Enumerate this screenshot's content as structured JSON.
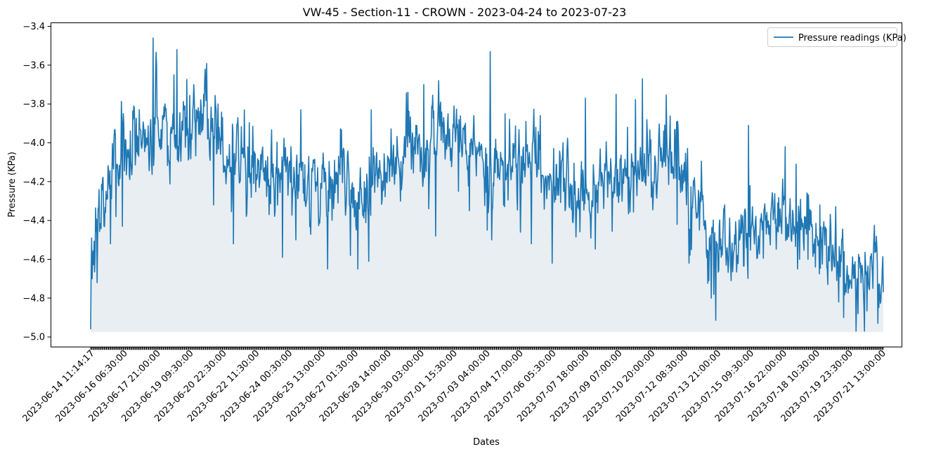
{
  "chart_data": {
    "type": "line",
    "title": "VW-45 - Section-11 - CROWN - 2023-04-24 to 2023-07-23",
    "xlabel": "Dates",
    "ylabel": "Pressure (KPa)",
    "ylim": [
      -5.05,
      -3.38
    ],
    "yticks": [
      -5.0,
      -4.8,
      -4.6,
      -4.4,
      -4.2,
      -4.0,
      -3.8,
      -3.6,
      -3.4
    ],
    "ytick_labels": [
      "−5.0",
      "−4.8",
      "−4.6",
      "−4.4",
      "−4.2",
      "−4.0",
      "−3.8",
      "−3.6",
      "−3.4"
    ],
    "xtick_labels": [
      "2023-06-14 11:14:17",
      "2023-06-16 06:30:00",
      "2023-06-17 21:00:00",
      "2023-06-19 09:30:00",
      "2023-06-20 22:30:00",
      "2023-06-22 11:30:00",
      "2023-06-24 00:30:00",
      "2023-06-25 13:00:00",
      "2023-06-27 01:30:00",
      "2023-06-28 14:00:00",
      "2023-06-30 03:00:00",
      "2023-07-01 15:30:00",
      "2023-07-03 04:00:00",
      "2023-07-04 17:00:00",
      "2023-07-06 05:30:00",
      "2023-07-07 18:00:00",
      "2023-07-09 07:00:00",
      "2023-07-10 20:00:00",
      "2023-07-12 08:30:00",
      "2023-07-13 21:00:00",
      "2023-07-15 09:30:00",
      "2023-07-16 22:00:00",
      "2023-07-18 10:30:00",
      "2023-07-19 23:30:00",
      "2023-07-21 13:00:00"
    ],
    "fill_baseline": -4.975,
    "legend_position": "upper right",
    "grid": false,
    "series": [
      {
        "name": "Pressure readings (KPa)",
        "color": "#1f77b4",
        "fill_color": "#e8eef2",
        "sample_count": 1600,
        "trend": [
          {
            "t": 0.0,
            "v": -4.85
          },
          {
            "t": 0.003,
            "v": -4.55
          },
          {
            "t": 0.012,
            "v": -4.3
          },
          {
            "t": 0.025,
            "v": -4.08
          },
          {
            "t": 0.06,
            "v": -4.02
          },
          {
            "t": 0.1,
            "v": -3.97
          },
          {
            "t": 0.14,
            "v": -3.92
          },
          {
            "t": 0.17,
            "v": -4.0
          },
          {
            "t": 0.2,
            "v": -4.12
          },
          {
            "t": 0.25,
            "v": -4.18
          },
          {
            "t": 0.3,
            "v": -4.22
          },
          {
            "t": 0.34,
            "v": -4.28
          },
          {
            "t": 0.38,
            "v": -4.2
          },
          {
            "t": 0.4,
            "v": -4.12
          },
          {
            "t": 0.43,
            "v": -4.0
          },
          {
            "t": 0.47,
            "v": -4.0
          },
          {
            "t": 0.5,
            "v": -4.1
          },
          {
            "t": 0.54,
            "v": -4.12
          },
          {
            "t": 0.56,
            "v": -4.1
          },
          {
            "t": 0.58,
            "v": -4.15
          },
          {
            "t": 0.6,
            "v": -4.22
          },
          {
            "t": 0.63,
            "v": -4.28
          },
          {
            "t": 0.67,
            "v": -4.18
          },
          {
            "t": 0.7,
            "v": -4.1
          },
          {
            "t": 0.74,
            "v": -4.1
          },
          {
            "t": 0.75,
            "v": -4.22
          },
          {
            "t": 0.76,
            "v": -4.3
          },
          {
            "t": 0.78,
            "v": -4.5
          },
          {
            "t": 0.8,
            "v": -4.5
          },
          {
            "t": 0.84,
            "v": -4.46
          },
          {
            "t": 0.88,
            "v": -4.42
          },
          {
            "t": 0.91,
            "v": -4.46
          },
          {
            "t": 0.93,
            "v": -4.58
          },
          {
            "t": 0.96,
            "v": -4.64
          },
          {
            "t": 1.0,
            "v": -4.66
          }
        ],
        "peaks": [
          {
            "t": 0.0,
            "v": -4.96
          },
          {
            "t": 0.0015,
            "v": -4.49
          },
          {
            "t": 0.008,
            "v": -4.72
          },
          {
            "t": 0.017,
            "v": -4.43
          },
          {
            "t": 0.025,
            "v": -4.52
          },
          {
            "t": 0.032,
            "v": -4.38
          },
          {
            "t": 0.04,
            "v": -4.43
          },
          {
            "t": 0.079,
            "v": -3.46
          },
          {
            "t": 0.083,
            "v": -3.6
          },
          {
            "t": 0.105,
            "v": -3.65
          },
          {
            "t": 0.109,
            "v": -3.52
          },
          {
            "t": 0.13,
            "v": -3.7
          },
          {
            "t": 0.155,
            "v": -4.32
          },
          {
            "t": 0.18,
            "v": -4.52
          },
          {
            "t": 0.194,
            "v": -3.83
          },
          {
            "t": 0.242,
            "v": -4.59
          },
          {
            "t": 0.265,
            "v": -3.83
          },
          {
            "t": 0.259,
            "v": -4.5
          },
          {
            "t": 0.299,
            "v": -4.65
          },
          {
            "t": 0.328,
            "v": -4.58
          },
          {
            "t": 0.337,
            "v": -4.65
          },
          {
            "t": 0.351,
            "v": -4.61
          },
          {
            "t": 0.354,
            "v": -3.83
          },
          {
            "t": 0.4,
            "v": -3.74
          },
          {
            "t": 0.42,
            "v": -3.7
          },
          {
            "t": 0.435,
            "v": -4.48
          },
          {
            "t": 0.464,
            "v": -4.25
          },
          {
            "t": 0.478,
            "v": -4.35
          },
          {
            "t": 0.506,
            "v": -4.5
          },
          {
            "t": 0.5,
            "v": -4.45
          },
          {
            "t": 0.504,
            "v": -3.53
          },
          {
            "t": 0.523,
            "v": -3.85
          },
          {
            "t": 0.556,
            "v": -4.52
          },
          {
            "t": 0.582,
            "v": -4.62
          },
          {
            "t": 0.608,
            "v": -4.4
          },
          {
            "t": 0.624,
            "v": -3.77
          },
          {
            "t": 0.663,
            "v": -3.75
          },
          {
            "t": 0.696,
            "v": -3.67
          },
          {
            "t": 0.74,
            "v": -4.42
          },
          {
            "t": 0.755,
            "v": -4.62
          },
          {
            "t": 0.758,
            "v": -4.55
          },
          {
            "t": 0.783,
            "v": -4.8
          },
          {
            "t": 0.786,
            "v": -4.78
          },
          {
            "t": 0.8,
            "v": -4.32
          },
          {
            "t": 0.808,
            "v": -4.71
          },
          {
            "t": 0.832,
            "v": -4.22
          },
          {
            "t": 0.83,
            "v": -3.91
          },
          {
            "t": 0.876,
            "v": -4.02
          },
          {
            "t": 0.892,
            "v": -4.65
          },
          {
            "t": 0.894,
            "v": -4.6
          },
          {
            "t": 0.905,
            "v": -4.6
          },
          {
            "t": 0.89,
            "v": -4.11
          },
          {
            "t": 0.903,
            "v": -4.47
          },
          {
            "t": 0.92,
            "v": -4.32
          },
          {
            "t": 0.93,
            "v": -4.73
          },
          {
            "t": 0.944,
            "v": -4.82
          },
          {
            "t": 0.95,
            "v": -4.9
          },
          {
            "t": 0.968,
            "v": -4.88
          },
          {
            "t": 0.976,
            "v": -4.97
          },
          {
            "t": 0.98,
            "v": -4.7
          },
          {
            "t": 0.993,
            "v": -4.93
          },
          {
            "t": 1.0,
            "v": -4.77
          }
        ]
      }
    ]
  }
}
